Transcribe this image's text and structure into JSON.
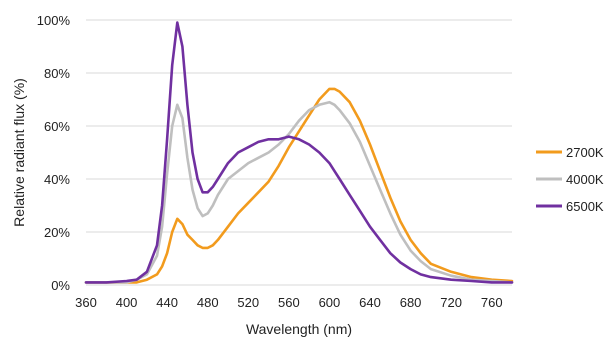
{
  "chart_data": {
    "type": "line",
    "xlabel": "Wavelength (nm)",
    "ylabel": "Relative radiant flux (%)",
    "xlim": [
      360,
      780
    ],
    "ylim": [
      0,
      100
    ],
    "x_ticks": [
      "360",
      "400",
      "440",
      "480",
      "520",
      "560",
      "600",
      "640",
      "680",
      "720",
      "760"
    ],
    "y_ticks": [
      "0%",
      "20%",
      "40%",
      "60%",
      "80%",
      "100%"
    ],
    "grid": "horizontal",
    "legend_position": "right",
    "x": [
      360,
      380,
      400,
      410,
      420,
      430,
      435,
      440,
      445,
      450,
      455,
      460,
      465,
      470,
      475,
      480,
      485,
      490,
      500,
      510,
      520,
      530,
      540,
      550,
      560,
      570,
      580,
      590,
      600,
      605,
      610,
      620,
      630,
      640,
      650,
      660,
      670,
      680,
      690,
      700,
      720,
      740,
      760,
      780
    ],
    "series": [
      {
        "name": "2700K",
        "color": "#f29b1d",
        "values": [
          1,
          1,
          1,
          1,
          2,
          4,
          7,
          12,
          20,
          25,
          23,
          19,
          17,
          15,
          14,
          14,
          15,
          17,
          22,
          27,
          31,
          35,
          39,
          45,
          52,
          58,
          64,
          70,
          74,
          74,
          73,
          69,
          62,
          53,
          43,
          33,
          24,
          17,
          12,
          8,
          5,
          3,
          2,
          1.5
        ]
      },
      {
        "name": "4000K",
        "color": "#bfbfbf",
        "values": [
          1,
          1,
          1,
          2,
          4,
          11,
          22,
          42,
          60,
          68,
          63,
          48,
          36,
          29,
          26,
          27,
          30,
          34,
          40,
          43,
          46,
          48,
          50,
          53,
          57,
          62,
          66,
          68,
          69,
          68,
          66,
          61,
          54,
          45,
          36,
          27,
          19,
          13,
          9,
          6,
          3.5,
          2,
          1.5,
          1
        ]
      },
      {
        "name": "6500K",
        "color": "#7030a0",
        "values": [
          1,
          1,
          1.5,
          2,
          5,
          15,
          30,
          55,
          83,
          99,
          90,
          68,
          50,
          40,
          35,
          35,
          37,
          40,
          46,
          50,
          52,
          54,
          55,
          55,
          56,
          55,
          53,
          50,
          46,
          43,
          40,
          34,
          28,
          22,
          17,
          12,
          8.5,
          6,
          4,
          3,
          2,
          1.5,
          1,
          1
        ]
      }
    ]
  }
}
